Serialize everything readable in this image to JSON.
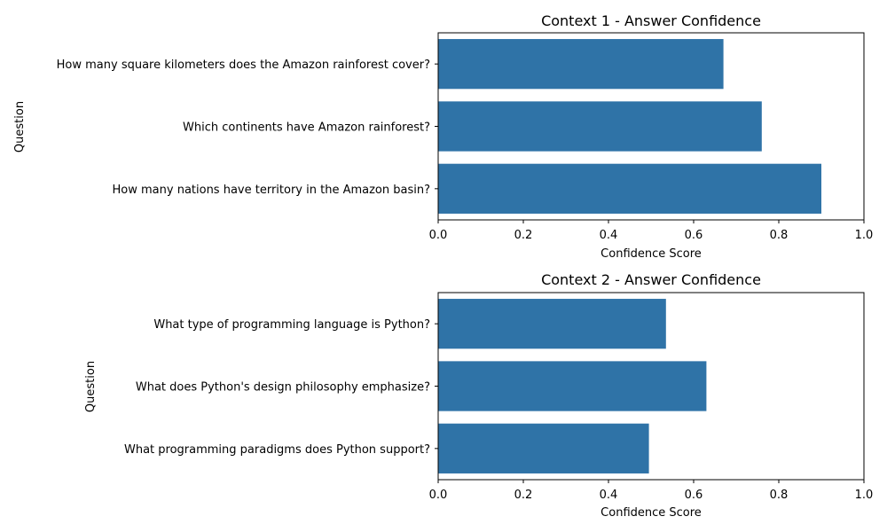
{
  "chart_data": [
    {
      "type": "bar",
      "orientation": "horizontal",
      "title": "Context 1 - Answer Confidence",
      "xlabel": "Confidence Score",
      "ylabel": "Question",
      "xlim": [
        0,
        1
      ],
      "xticks": [
        "0.0",
        "0.2",
        "0.4",
        "0.6",
        "0.8",
        "1.0"
      ],
      "categories": [
        "How many square kilometers does the Amazon rainforest cover?",
        "Which continents have Amazon rainforest?",
        "How many nations have territory in the Amazon basin?"
      ],
      "values": [
        0.67,
        0.76,
        0.9
      ],
      "color": "#2f73a7",
      "grid": false
    },
    {
      "type": "bar",
      "orientation": "horizontal",
      "title": "Context 2 - Answer Confidence",
      "xlabel": "Confidence Score",
      "ylabel": "Question",
      "xlim": [
        0,
        1
      ],
      "xticks": [
        "0.0",
        "0.2",
        "0.4",
        "0.6",
        "0.8",
        "1.0"
      ],
      "categories": [
        "What type of programming language is Python?",
        "What does Python's design philosophy emphasize?",
        "What programming paradigms does Python support?"
      ],
      "values": [
        0.535,
        0.63,
        0.495
      ],
      "color": "#2f73a7",
      "grid": false
    }
  ]
}
